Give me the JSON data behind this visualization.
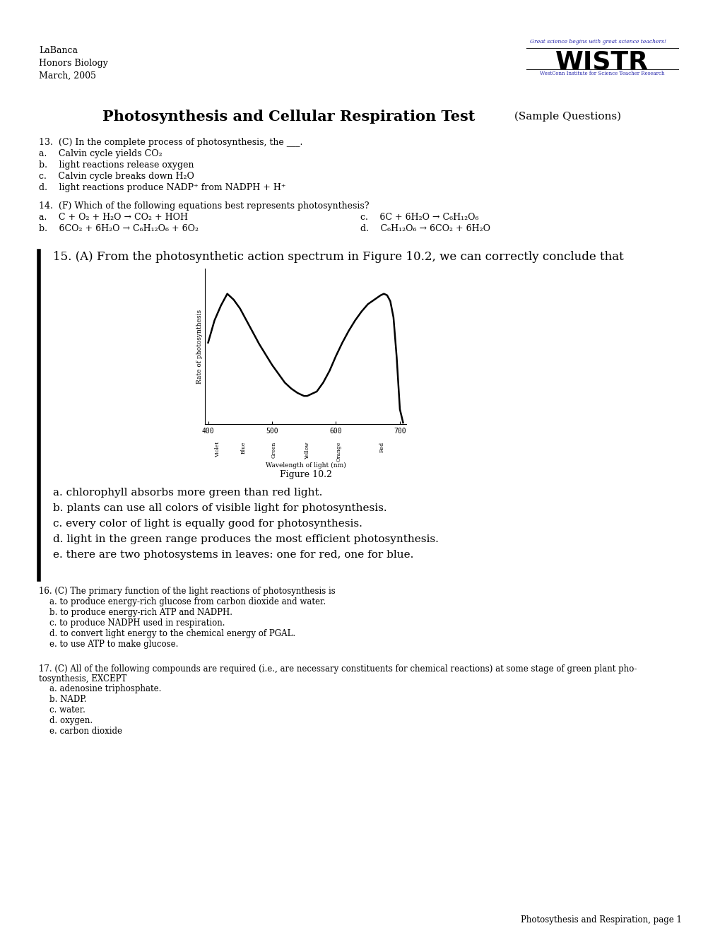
{
  "header_left": [
    "LaBanca",
    "Honors Biology",
    "March, 2005"
  ],
  "bg_color": "#ffffff",
  "text_color": "#000000",
  "footer": "Photosythesis and Respiration, page 1"
}
